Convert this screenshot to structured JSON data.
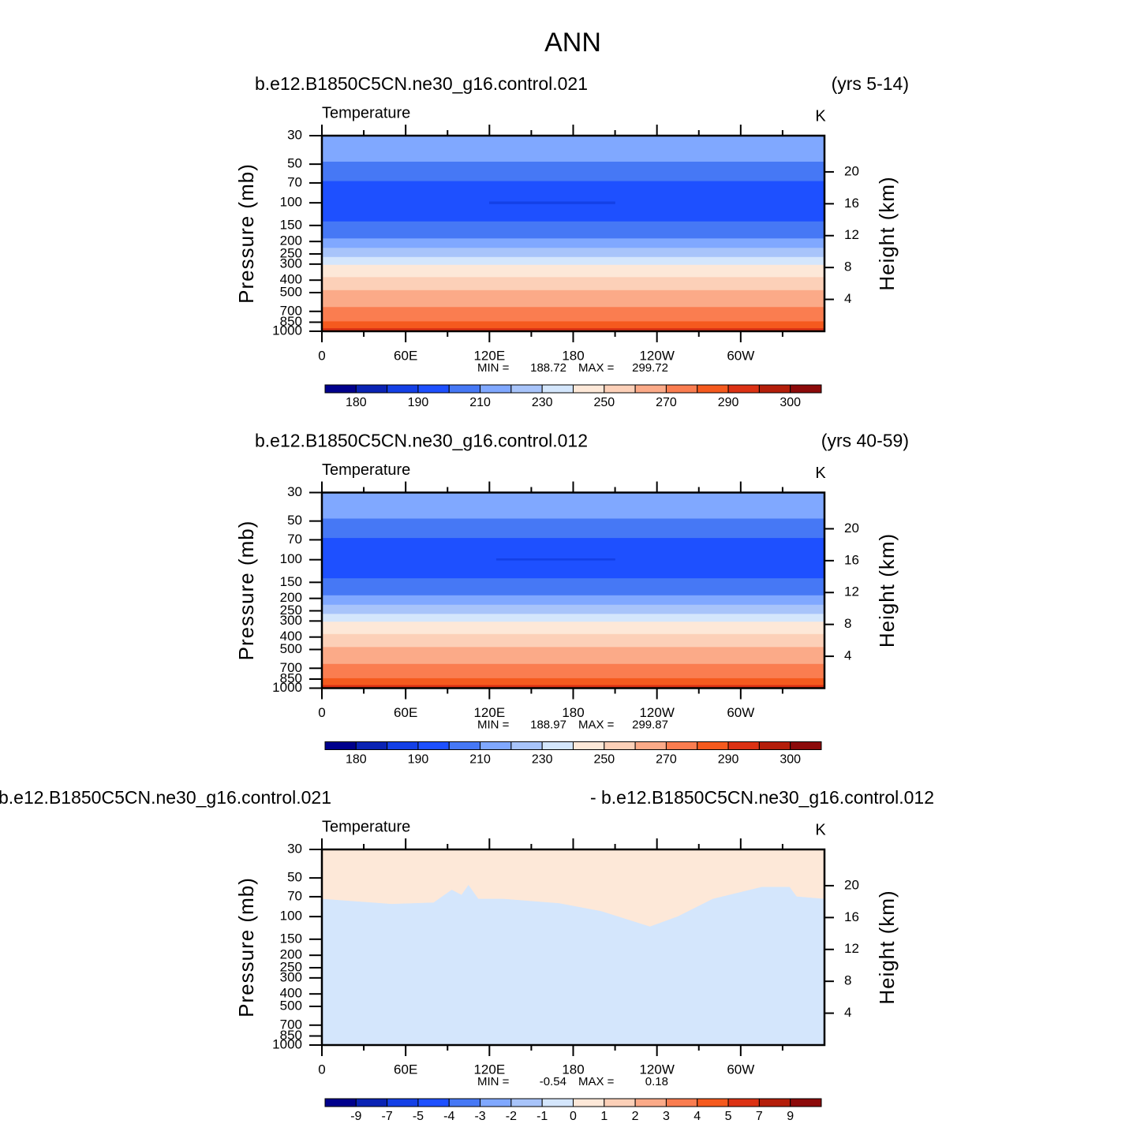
{
  "title": "ANN",
  "chart_data": [
    {
      "type": "contour",
      "title": "b.e12.B1850C5CN.ne30_g16.control.021",
      "title_right": "(yrs 5-14)",
      "subtitle_left": "Temperature",
      "subtitle_right": "K",
      "ylabel": "Pressure (mb)",
      "y2label": "Height (km)",
      "xlim": [
        0,
        360
      ],
      "xticks": [
        0,
        {
          "value": 60,
          "label": "60E"
        },
        {
          "value": 120,
          "label": "120E"
        },
        180,
        {
          "value": 240,
          "label": "120W"
        },
        {
          "value": 300,
          "label": "60W"
        }
      ],
      "xminor_ticks": [
        30,
        90,
        150,
        210,
        270,
        330
      ],
      "ylim": [
        1000,
        30
      ],
      "log_y": true,
      "yticks": [
        30,
        50,
        70,
        100,
        150,
        200,
        250,
        300,
        400,
        500,
        700,
        850,
        1000
      ],
      "y2ticks": [
        4,
        8,
        12,
        16,
        20
      ],
      "min_label": "MIN =",
      "min": 188.72,
      "max_label": "MAX =",
      "max": 299.72,
      "colorbar": {
        "levels": [
          180,
          185,
          190,
          200,
          210,
          220,
          230,
          240,
          250,
          260,
          270,
          280,
          290,
          295,
          300
        ],
        "ticks": [
          180,
          190,
          210,
          230,
          250,
          270,
          290,
          300
        ],
        "colors": [
          "#00008c",
          "#0a23b4",
          "#1440e6",
          "#1e50ff",
          "#4678f5",
          "#80a8ff",
          "#a8c4fa",
          "#d4e6fc",
          "#fde8d8",
          "#fcd0b8",
          "#fbaa88",
          "#fa7d50",
          "#f55a1e",
          "#dc3214",
          "#b41e0a",
          "#8c0a0a"
        ]
      },
      "regions": [
        {
          "level": 210,
          "lon": [
            0,
            360
          ],
          "p_top": [
            30,
            30
          ],
          "p_bottom": [
            48,
            48
          ]
        },
        {
          "level": 200,
          "lon": [
            0,
            360
          ],
          "p_top": [
            48,
            48
          ],
          "p_bottom": [
            68,
            68
          ]
        },
        {
          "level": 190,
          "lon": [
            0,
            360
          ],
          "p_top": [
            68,
            68
          ],
          "p_bottom": [
            140,
            140
          ]
        },
        {
          "level": 185,
          "lon": [
            120,
            210
          ],
          "p_top": [
            98,
            98
          ],
          "p_bottom": [
            102,
            102
          ]
        },
        {
          "level": 200,
          "lon": [
            0,
            360
          ],
          "p_top": [
            140,
            140
          ],
          "p_bottom": [
            190,
            190
          ]
        },
        {
          "level": 210,
          "lon": [
            0,
            360
          ],
          "p_top": [
            190,
            190
          ],
          "p_bottom": [
            225,
            225
          ]
        },
        {
          "level": 220,
          "lon": [
            0,
            360
          ],
          "p_top": [
            225,
            225
          ],
          "p_bottom": [
            265,
            265
          ]
        },
        {
          "level": 230,
          "lon": [
            0,
            360
          ],
          "p_top": [
            265,
            265
          ],
          "p_bottom": [
            305,
            305
          ]
        },
        {
          "level": 240,
          "lon": [
            0,
            360
          ],
          "p_top": [
            305,
            305
          ],
          "p_bottom": [
            380,
            380
          ]
        },
        {
          "level": 250,
          "lon": [
            0,
            360
          ],
          "p_top": [
            380,
            380
          ],
          "p_bottom": [
            480,
            480
          ]
        },
        {
          "level": 260,
          "lon": [
            0,
            360
          ],
          "p_top": [
            480,
            480
          ],
          "p_bottom": [
            650,
            650
          ]
        },
        {
          "level": 270,
          "lon": [
            0,
            360
          ],
          "p_top": [
            650,
            650
          ],
          "p_bottom": [
            840,
            840
          ]
        },
        {
          "level": 280,
          "lon": [
            0,
            360
          ],
          "p_top": [
            840,
            840
          ],
          "p_bottom": [
            950,
            950
          ]
        },
        {
          "level": 290,
          "lon": [
            0,
            360
          ],
          "p_top": [
            950,
            950
          ],
          "p_bottom": [
            1000,
            1000
          ]
        }
      ]
    },
    {
      "type": "contour",
      "title": "b.e12.B1850C5CN.ne30_g16.control.012",
      "title_right": "(yrs 40-59)",
      "subtitle_left": "Temperature",
      "subtitle_right": "K",
      "ylabel": "Pressure (mb)",
      "y2label": "Height (km)",
      "xlim": [
        0,
        360
      ],
      "xticks": [
        0,
        {
          "value": 60,
          "label": "60E"
        },
        {
          "value": 120,
          "label": "120E"
        },
        180,
        {
          "value": 240,
          "label": "120W"
        },
        {
          "value": 300,
          "label": "60W"
        }
      ],
      "xminor_ticks": [
        30,
        90,
        150,
        210,
        270,
        330
      ],
      "ylim": [
        1000,
        30
      ],
      "log_y": true,
      "yticks": [
        30,
        50,
        70,
        100,
        150,
        200,
        250,
        300,
        400,
        500,
        700,
        850,
        1000
      ],
      "y2ticks": [
        4,
        8,
        12,
        16,
        20
      ],
      "min_label": "MIN =",
      "min": 188.97,
      "max_label": "MAX =",
      "max": 299.87,
      "colorbar": {
        "levels": [
          180,
          185,
          190,
          200,
          210,
          220,
          230,
          240,
          250,
          260,
          270,
          280,
          290,
          295,
          300
        ],
        "ticks": [
          180,
          190,
          210,
          230,
          250,
          270,
          290,
          300
        ],
        "colors": [
          "#00008c",
          "#0a23b4",
          "#1440e6",
          "#1e50ff",
          "#4678f5",
          "#80a8ff",
          "#a8c4fa",
          "#d4e6fc",
          "#fde8d8",
          "#fcd0b8",
          "#fbaa88",
          "#fa7d50",
          "#f55a1e",
          "#dc3214",
          "#b41e0a",
          "#8c0a0a"
        ]
      },
      "regions": [
        {
          "level": 210,
          "lon": [
            0,
            360
          ],
          "p_top": [
            30,
            30
          ],
          "p_bottom": [
            48,
            48
          ]
        },
        {
          "level": 200,
          "lon": [
            0,
            360
          ],
          "p_top": [
            48,
            48
          ],
          "p_bottom": [
            68,
            68
          ]
        },
        {
          "level": 190,
          "lon": [
            0,
            360
          ],
          "p_top": [
            68,
            68
          ],
          "p_bottom": [
            140,
            140
          ]
        },
        {
          "level": 185,
          "lon": [
            125,
            210
          ],
          "p_top": [
            98,
            98
          ],
          "p_bottom": [
            101,
            101
          ]
        },
        {
          "level": 200,
          "lon": [
            0,
            360
          ],
          "p_top": [
            140,
            140
          ],
          "p_bottom": [
            190,
            190
          ]
        },
        {
          "level": 210,
          "lon": [
            0,
            360
          ],
          "p_top": [
            190,
            190
          ],
          "p_bottom": [
            225,
            225
          ]
        },
        {
          "level": 220,
          "lon": [
            0,
            360
          ],
          "p_top": [
            225,
            225
          ],
          "p_bottom": [
            265,
            265
          ]
        },
        {
          "level": 230,
          "lon": [
            0,
            360
          ],
          "p_top": [
            265,
            265
          ],
          "p_bottom": [
            305,
            305
          ]
        },
        {
          "level": 240,
          "lon": [
            0,
            360
          ],
          "p_top": [
            305,
            305
          ],
          "p_bottom": [
            380,
            380
          ]
        },
        {
          "level": 250,
          "lon": [
            0,
            360
          ],
          "p_top": [
            380,
            380
          ],
          "p_bottom": [
            480,
            480
          ]
        },
        {
          "level": 260,
          "lon": [
            0,
            360
          ],
          "p_top": [
            480,
            480
          ],
          "p_bottom": [
            650,
            650
          ]
        },
        {
          "level": 270,
          "lon": [
            0,
            360
          ],
          "p_top": [
            650,
            650
          ],
          "p_bottom": [
            840,
            840
          ]
        },
        {
          "level": 280,
          "lon": [
            0,
            360
          ],
          "p_top": [
            840,
            840
          ],
          "p_bottom": [
            950,
            950
          ]
        },
        {
          "level": 290,
          "lon": [
            0,
            360
          ],
          "p_top": [
            950,
            950
          ],
          "p_bottom": [
            1000,
            1000
          ]
        }
      ]
    },
    {
      "type": "contour",
      "title": "b.e12.B1850C5CN.ne30_g16.control.021",
      "title_right": "- b.e12.B1850C5CN.ne30_g16.control.012",
      "subtitle_left": "Temperature",
      "subtitle_right": "K",
      "ylabel": "Pressure (mb)",
      "y2label": "Height (km)",
      "xlim": [
        0,
        360
      ],
      "xticks": [
        0,
        {
          "value": 60,
          "label": "60E"
        },
        {
          "value": 120,
          "label": "120E"
        },
        180,
        {
          "value": 240,
          "label": "120W"
        },
        {
          "value": 300,
          "label": "60W"
        }
      ],
      "xminor_ticks": [
        30,
        90,
        150,
        210,
        270,
        330
      ],
      "ylim": [
        1000,
        30
      ],
      "log_y": true,
      "yticks": [
        30,
        50,
        70,
        100,
        150,
        200,
        250,
        300,
        400,
        500,
        700,
        850,
        1000
      ],
      "y2ticks": [
        4,
        8,
        12,
        16,
        20
      ],
      "min_label": "MIN =",
      "min": -0.54,
      "max_label": "MAX =",
      "max": 0.18,
      "colorbar": {
        "levels": [
          -9,
          -7,
          -5,
          -4,
          -3,
          -2,
          -1,
          0,
          1,
          2,
          3,
          4,
          5,
          7,
          9
        ],
        "ticks": [
          -9,
          -7,
          -5,
          -4,
          -3,
          -2,
          -1,
          0,
          1,
          2,
          3,
          4,
          5,
          7,
          9
        ],
        "colors": [
          "#00008c",
          "#0a23b4",
          "#1440e6",
          "#1e50ff",
          "#4678f5",
          "#80a8ff",
          "#a8c4fa",
          "#d4e6fc",
          "#fde8d8",
          "#fcd0b8",
          "#fbaa88",
          "#fa7d50",
          "#f55a1e",
          "#dc3214",
          "#b41e0a",
          "#8c0a0a"
        ]
      },
      "regions": [
        {
          "level": 0,
          "lon": [
            0,
            50,
            80,
            93,
            100,
            105,
            112,
            130,
            170,
            200,
            235,
            255,
            280,
            315,
            335,
            340,
            360
          ],
          "p_top": [
            30,
            30,
            30,
            30,
            30,
            30,
            30,
            30,
            30,
            30,
            30,
            30,
            30,
            30,
            30,
            30,
            30
          ],
          "p_bottom": [
            73,
            80,
            78,
            62,
            68,
            57,
            73,
            73,
            79,
            91,
            120,
            100,
            73,
            59,
            59,
            70,
            73
          ]
        },
        {
          "level": -1,
          "lon": [
            0,
            50,
            80,
            93,
            100,
            105,
            112,
            130,
            170,
            200,
            235,
            255,
            280,
            315,
            335,
            340,
            360
          ],
          "p_top": [
            73,
            80,
            78,
            62,
            68,
            57,
            73,
            73,
            79,
            91,
            120,
            100,
            73,
            59,
            59,
            70,
            73
          ],
          "p_bottom": [
            1000,
            1000,
            1000,
            1000,
            1000,
            1000,
            1000,
            1000,
            1000,
            1000,
            1000,
            1000,
            1000,
            1000,
            1000,
            1000,
            1000
          ]
        }
      ]
    }
  ]
}
